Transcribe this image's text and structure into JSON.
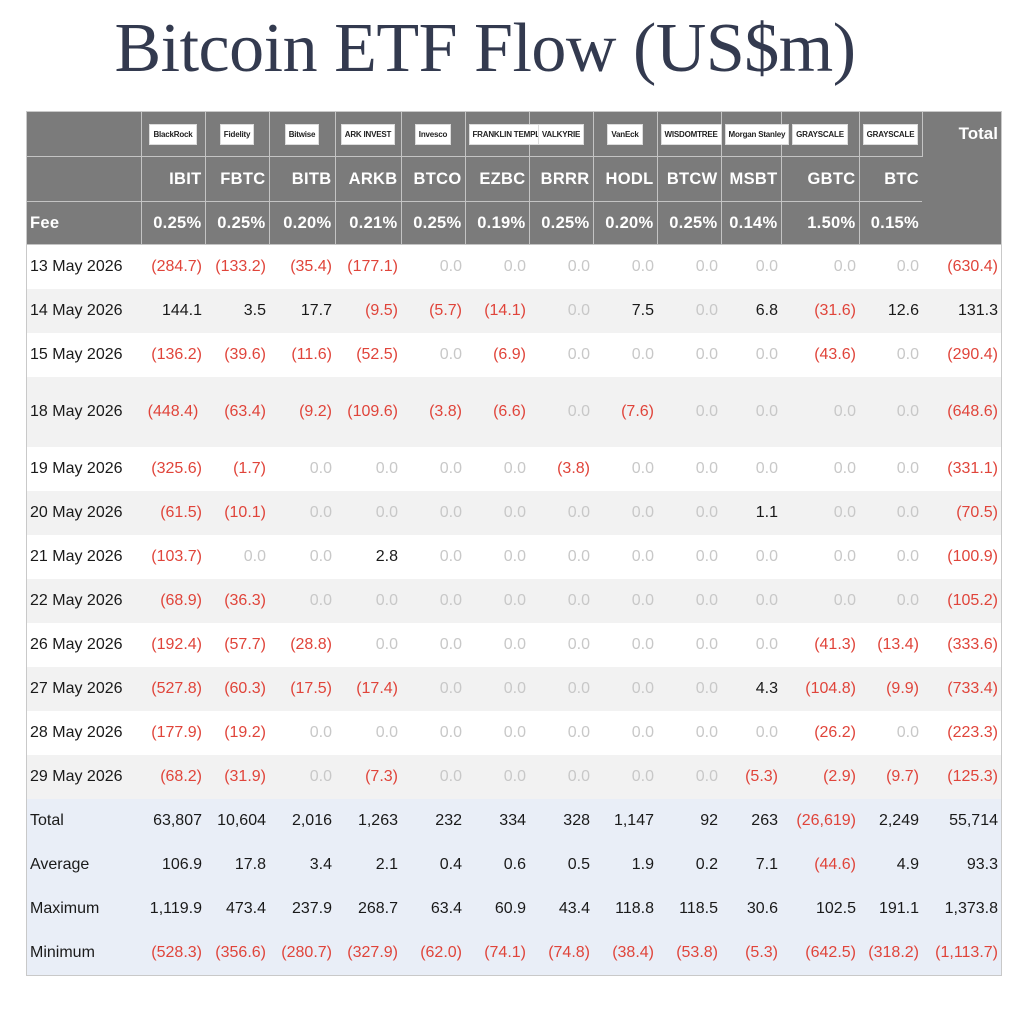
{
  "title": "Bitcoin ETF Flow (US$m)",
  "colors": {
    "header_bg": "#7b7b7b",
    "negative": "#e0443a",
    "zero": "#c8c8c8",
    "summary_bg": "#e9eef7",
    "title": "#333a4f"
  },
  "issuers": [
    "BlackRock",
    "Fidelity",
    "Bitwise",
    "ARK INVEST",
    "Invesco",
    "FRANKLIN TEMPLETON",
    "VALKYRIE",
    "VanEck",
    "WISDOMTREE",
    "Morgan Stanley",
    "GRAYSCALE",
    "GRAYSCALE"
  ],
  "total_label": "Total",
  "tickers": [
    "IBIT",
    "FBTC",
    "BITB",
    "ARKB",
    "BTCO",
    "EZBC",
    "BRRR",
    "HODL",
    "BTCW",
    "MSBT",
    "GBTC",
    "BTC"
  ],
  "fee_label": "Fee",
  "fees": [
    "0.25%",
    "0.25%",
    "0.20%",
    "0.21%",
    "0.25%",
    "0.19%",
    "0.25%",
    "0.20%",
    "0.25%",
    "0.14%",
    "1.50%",
    "0.15%"
  ],
  "rows": [
    {
      "date": "13 May 2026",
      "values": [
        "(284.7)",
        "(133.2)",
        "(35.4)",
        "(177.1)",
        "0.0",
        "0.0",
        "0.0",
        "0.0",
        "0.0",
        "0.0",
        "0.0",
        "0.0"
      ],
      "total": "(630.4)"
    },
    {
      "date": "14 May 2026",
      "values": [
        "144.1",
        "3.5",
        "17.7",
        "(9.5)",
        "(5.7)",
        "(14.1)",
        "0.0",
        "7.5",
        "0.0",
        "6.8",
        "(31.6)",
        "12.6"
      ],
      "total": "131.3"
    },
    {
      "date": "15 May 2026",
      "values": [
        "(136.2)",
        "(39.6)",
        "(11.6)",
        "(52.5)",
        "0.0",
        "(6.9)",
        "0.0",
        "0.0",
        "0.0",
        "0.0",
        "(43.6)",
        "0.0"
      ],
      "total": "(290.4)"
    },
    {
      "date": "18 May 2026",
      "values": [
        "(448.4)",
        "(63.4)",
        "(9.2)",
        "(109.6)",
        "(3.8)",
        "(6.6)",
        "0.0",
        "(7.6)",
        "0.0",
        "0.0",
        "0.0",
        "0.0"
      ],
      "total": "(648.6)"
    },
    {
      "date": "19 May 2026",
      "values": [
        "(325.6)",
        "(1.7)",
        "0.0",
        "0.0",
        "0.0",
        "0.0",
        "(3.8)",
        "0.0",
        "0.0",
        "0.0",
        "0.0",
        "0.0"
      ],
      "total": "(331.1)"
    },
    {
      "date": "20 May 2026",
      "values": [
        "(61.5)",
        "(10.1)",
        "0.0",
        "0.0",
        "0.0",
        "0.0",
        "0.0",
        "0.0",
        "0.0",
        "1.1",
        "0.0",
        "0.0"
      ],
      "total": "(70.5)"
    },
    {
      "date": "21 May 2026",
      "values": [
        "(103.7)",
        "0.0",
        "0.0",
        "2.8",
        "0.0",
        "0.0",
        "0.0",
        "0.0",
        "0.0",
        "0.0",
        "0.0",
        "0.0"
      ],
      "total": "(100.9)"
    },
    {
      "date": "22 May 2026",
      "values": [
        "(68.9)",
        "(36.3)",
        "0.0",
        "0.0",
        "0.0",
        "0.0",
        "0.0",
        "0.0",
        "0.0",
        "0.0",
        "0.0",
        "0.0"
      ],
      "total": "(105.2)"
    },
    {
      "date": "26 May 2026",
      "values": [
        "(192.4)",
        "(57.7)",
        "(28.8)",
        "0.0",
        "0.0",
        "0.0",
        "0.0",
        "0.0",
        "0.0",
        "0.0",
        "(41.3)",
        "(13.4)"
      ],
      "total": "(333.6)"
    },
    {
      "date": "27 May 2026",
      "values": [
        "(527.8)",
        "(60.3)",
        "(17.5)",
        "(17.4)",
        "0.0",
        "0.0",
        "0.0",
        "0.0",
        "0.0",
        "4.3",
        "(104.8)",
        "(9.9)"
      ],
      "total": "(733.4)"
    },
    {
      "date": "28 May 2026",
      "values": [
        "(177.9)",
        "(19.2)",
        "0.0",
        "0.0",
        "0.0",
        "0.0",
        "0.0",
        "0.0",
        "0.0",
        "0.0",
        "(26.2)",
        "0.0"
      ],
      "total": "(223.3)"
    },
    {
      "date": "29 May 2026",
      "values": [
        "(68.2)",
        "(31.9)",
        "0.0",
        "(7.3)",
        "0.0",
        "0.0",
        "0.0",
        "0.0",
        "0.0",
        "(5.3)",
        "(2.9)",
        "(9.7)"
      ],
      "total": "(125.3)"
    }
  ],
  "summary": [
    {
      "label": "Total",
      "values": [
        "63,807",
        "10,604",
        "2,016",
        "1,263",
        "232",
        "334",
        "328",
        "1,147",
        "92",
        "263",
        "(26,619)",
        "2,249"
      ],
      "total": "55,714"
    },
    {
      "label": "Average",
      "values": [
        "106.9",
        "17.8",
        "3.4",
        "2.1",
        "0.4",
        "0.6",
        "0.5",
        "1.9",
        "0.2",
        "7.1",
        "(44.6)",
        "4.9"
      ],
      "total": "93.3"
    },
    {
      "label": "Maximum",
      "values": [
        "1,119.9",
        "473.4",
        "237.9",
        "268.7",
        "63.4",
        "60.9",
        "43.4",
        "118.8",
        "118.5",
        "30.6",
        "102.5",
        "191.1"
      ],
      "total": "1,373.8"
    },
    {
      "label": "Minimum",
      "values": [
        "(528.3)",
        "(356.6)",
        "(280.7)",
        "(327.9)",
        "(62.0)",
        "(74.1)",
        "(74.8)",
        "(38.4)",
        "(53.8)",
        "(5.3)",
        "(642.5)",
        "(318.2)"
      ],
      "total": "(1,113.7)"
    }
  ]
}
